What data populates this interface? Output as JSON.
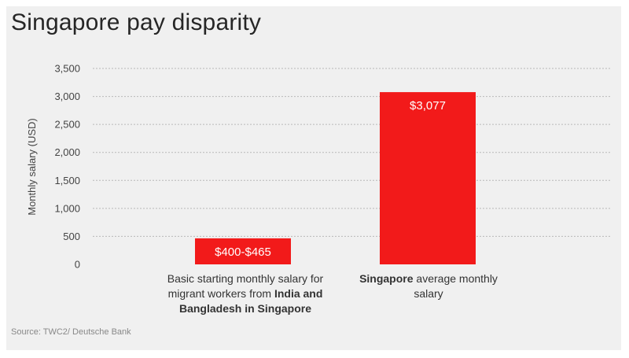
{
  "title": "Singapore pay disparity",
  "source": "Source: TWC2/ Deutsche Bank",
  "colors": {
    "bar": "#f21a1a",
    "grid": "#b8b8b8",
    "background": "#f0f0f0"
  },
  "chart_data": {
    "type": "bar",
    "title": "Singapore pay disparity",
    "ylabel": "Monthly salary (USD)",
    "xlabel": "",
    "ylim": [
      0,
      3500
    ],
    "yticks": [
      0,
      500,
      1000,
      1500,
      2000,
      2500,
      3000,
      3500
    ],
    "ytick_labels": [
      "0",
      "500",
      "1,000",
      "1,500",
      "2,000",
      "2,500",
      "3,000",
      "3,500"
    ],
    "grid": true,
    "categories": [
      {
        "label_parts": [
          {
            "text": "Basic starting monthly salary for migrant workers from ",
            "bold": false
          },
          {
            "text": "India and Bangladesh in Singapore",
            "bold": true
          }
        ]
      },
      {
        "label_parts": [
          {
            "text": "Singapore",
            "bold": true
          },
          {
            "text": " average monthly salary",
            "bold": false
          }
        ]
      }
    ],
    "values": [
      465,
      3077
    ],
    "value_labels": [
      "$400-$465",
      "$3,077"
    ]
  }
}
